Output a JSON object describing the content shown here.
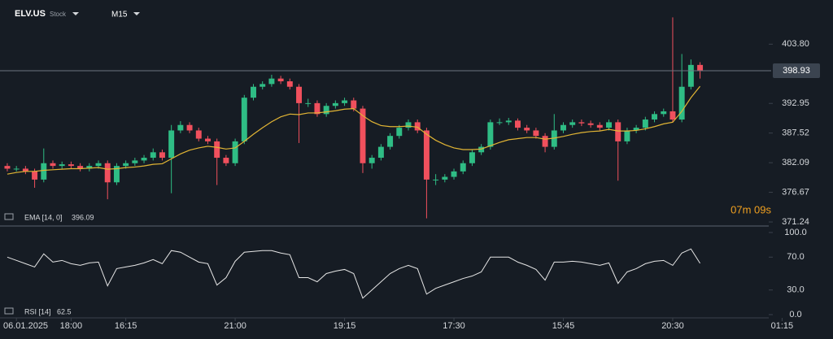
{
  "header": {
    "symbol": "ELV.US",
    "asset_type": "Stock",
    "timeframe": "M15"
  },
  "countdown": "07m 09s",
  "chart_data": [
    {
      "type": "candlestick",
      "up_color": "#2fbd85",
      "down_color": "#f0505d",
      "open": [
        381.5,
        381,
        381,
        380.5,
        379,
        382,
        381.5,
        381.8,
        381.5,
        381,
        381.5,
        382,
        378.5,
        381.5,
        382,
        382.5,
        383,
        384,
        383,
        388,
        389,
        388,
        386.5,
        386,
        383,
        382,
        386,
        394,
        396,
        396.5,
        397.5,
        397,
        396,
        393,
        393,
        391,
        392.5,
        393,
        393.5,
        392,
        382,
        383,
        385,
        387,
        388.5,
        389.5,
        388,
        379,
        379,
        379.5,
        380.5,
        382,
        384,
        385,
        389.5,
        389.5,
        389.8,
        388.5,
        388,
        387,
        385,
        388,
        389,
        389.5,
        389.3,
        389,
        388.5,
        389.5,
        386,
        388,
        388.5,
        390,
        391,
        391.5,
        390,
        396,
        400
      ],
      "high": [
        382,
        381.5,
        381.5,
        381,
        384.7,
        382.5,
        382.3,
        382.3,
        382,
        382,
        382.5,
        382.5,
        382,
        382.5,
        383,
        383.5,
        384.7,
        384.5,
        389,
        389.7,
        389.5,
        388.5,
        387,
        386.5,
        383.5,
        386.5,
        394.5,
        396.5,
        397,
        398.2,
        398,
        397.5,
        396.5,
        393.8,
        393.5,
        393,
        393.5,
        394,
        394,
        392.5,
        383.5,
        385.5,
        387.5,
        389,
        390,
        390,
        388.5,
        380,
        380,
        381,
        382.5,
        384.5,
        385.5,
        390,
        390.2,
        390.3,
        390.2,
        389,
        388.5,
        387.5,
        391,
        389.5,
        390,
        390,
        389.8,
        389.5,
        390,
        390,
        388.5,
        389,
        390.5,
        391.5,
        392,
        408.7,
        402,
        401,
        400.5
      ],
      "low": [
        380.5,
        380.5,
        380,
        377.5,
        378.5,
        381,
        381,
        381,
        380.5,
        380.5,
        381,
        375.4,
        378,
        381,
        381.5,
        382,
        382.5,
        382.5,
        376.5,
        387.5,
        387.5,
        386,
        385.5,
        378,
        381.5,
        381.5,
        385.5,
        393.5,
        395.5,
        396,
        396.5,
        395.5,
        385.7,
        392.3,
        390.5,
        390.5,
        392,
        392.5,
        391.5,
        380.2,
        381,
        382.5,
        384.5,
        386.5,
        388,
        387.5,
        371.9,
        378,
        378.5,
        379,
        380,
        381.5,
        383.5,
        384.5,
        389,
        389,
        388,
        387.5,
        386.5,
        384,
        384.5,
        387.5,
        388.5,
        388.8,
        388.5,
        388,
        388,
        378.8,
        385.5,
        387.5,
        388,
        389.5,
        390.5,
        389.5,
        389.5,
        395.5,
        397.5
      ],
      "close": [
        381,
        381,
        380.5,
        379,
        382,
        381.5,
        381.8,
        381.5,
        381,
        381.5,
        382,
        378.5,
        381.5,
        382,
        382.5,
        383,
        384,
        383,
        388,
        389,
        388,
        386.5,
        386,
        383,
        382,
        386,
        394,
        396,
        396.5,
        397.5,
        397,
        396,
        393,
        393,
        391,
        392.5,
        393,
        393.5,
        392,
        382,
        383,
        385,
        387,
        388.5,
        389.5,
        388,
        379,
        379,
        379.5,
        380.5,
        382,
        384,
        385,
        389.5,
        389.5,
        389.8,
        388.5,
        388,
        387,
        385,
        388,
        389,
        389.5,
        389.3,
        389,
        388.5,
        389.5,
        386,
        388,
        388.5,
        390,
        391,
        391.5,
        390,
        396,
        400,
        398.93
      ],
      "overlay": {
        "name": "EMA [14, 0]",
        "color": "#e2b534",
        "values": [
          380.0,
          380.3,
          380.5,
          380.5,
          380.7,
          380.8,
          380.9,
          381.0,
          381.0,
          381.1,
          381.2,
          380.9,
          381.0,
          381.2,
          381.3,
          381.5,
          381.8,
          381.9,
          382.8,
          383.7,
          384.4,
          384.8,
          385.1,
          384.9,
          384.6,
          384.8,
          386.0,
          387.3,
          388.5,
          389.6,
          390.5,
          391.0,
          390.9,
          391.2,
          391.2,
          391.4,
          391.6,
          391.9,
          392.0,
          390.7,
          389.6,
          388.9,
          388.7,
          388.7,
          388.8,
          388.6,
          387.3,
          386.2,
          385.4,
          384.8,
          384.5,
          384.5,
          384.6,
          385.2,
          385.8,
          386.3,
          386.5,
          386.7,
          386.7,
          386.4,
          386.6,
          386.9,
          387.3,
          387.6,
          387.8,
          387.9,
          388.2,
          387.9,
          387.9,
          388.0,
          388.3,
          388.7,
          389.2,
          389.5,
          391.5,
          394,
          396.09
        ]
      },
      "xlim": [
        -0.8,
        88.8
      ],
      "ylim": [
        370.5,
        410.4
      ],
      "yticks": [
        {
          "value": 371.24,
          "label": "371.24"
        },
        {
          "value": 376.67,
          "label": "376.67"
        },
        {
          "value": 382.09,
          "label": "382.09"
        },
        {
          "value": 387.52,
          "label": "387.52"
        },
        {
          "value": 392.95,
          "label": "392.95"
        },
        {
          "value": 403.8,
          "label": "403.80"
        }
      ]
    },
    {
      "type": "line",
      "series": [
        {
          "name": "RSI [14]",
          "color": "#e6e6e6",
          "values": [
            70,
            66,
            62,
            58,
            74,
            64,
            66,
            62,
            60,
            63,
            64,
            35,
            56,
            58,
            60,
            63,
            67,
            62,
            78,
            76,
            70,
            64,
            62,
            36,
            45,
            65,
            76,
            77,
            78,
            78,
            75,
            73,
            45,
            45,
            40,
            50,
            53,
            55,
            50,
            20,
            30,
            40,
            50,
            56,
            60,
            56,
            25,
            32,
            36,
            40,
            44,
            47,
            52,
            70,
            70,
            70,
            64,
            60,
            55,
            42,
            64,
            64,
            65,
            64,
            62,
            60,
            63,
            38,
            52,
            56,
            62,
            65,
            66,
            60,
            75,
            80,
            62.5
          ]
        }
      ],
      "xlim": [
        -0.8,
        88.8
      ],
      "ylim": [
        0,
        100
      ],
      "yticks": [
        {
          "value": 0,
          "label": "0.0"
        },
        {
          "value": 30,
          "label": "30.0"
        },
        {
          "value": 70,
          "label": "70.0"
        },
        {
          "value": 100,
          "label": "100.0"
        }
      ],
      "xticks": [
        {
          "value": 1,
          "label": "06.01.2025"
        },
        {
          "value": 7,
          "label": "18:00"
        },
        {
          "value": 13,
          "label": "16:15"
        },
        {
          "value": 25,
          "label": "21:00"
        },
        {
          "value": 37,
          "label": "19:15"
        },
        {
          "value": 49,
          "label": "17:30"
        },
        {
          "value": 61,
          "label": "15:45"
        },
        {
          "value": 73,
          "label": "20:30"
        },
        {
          "value": 85,
          "label": "01:15"
        }
      ]
    }
  ]
}
